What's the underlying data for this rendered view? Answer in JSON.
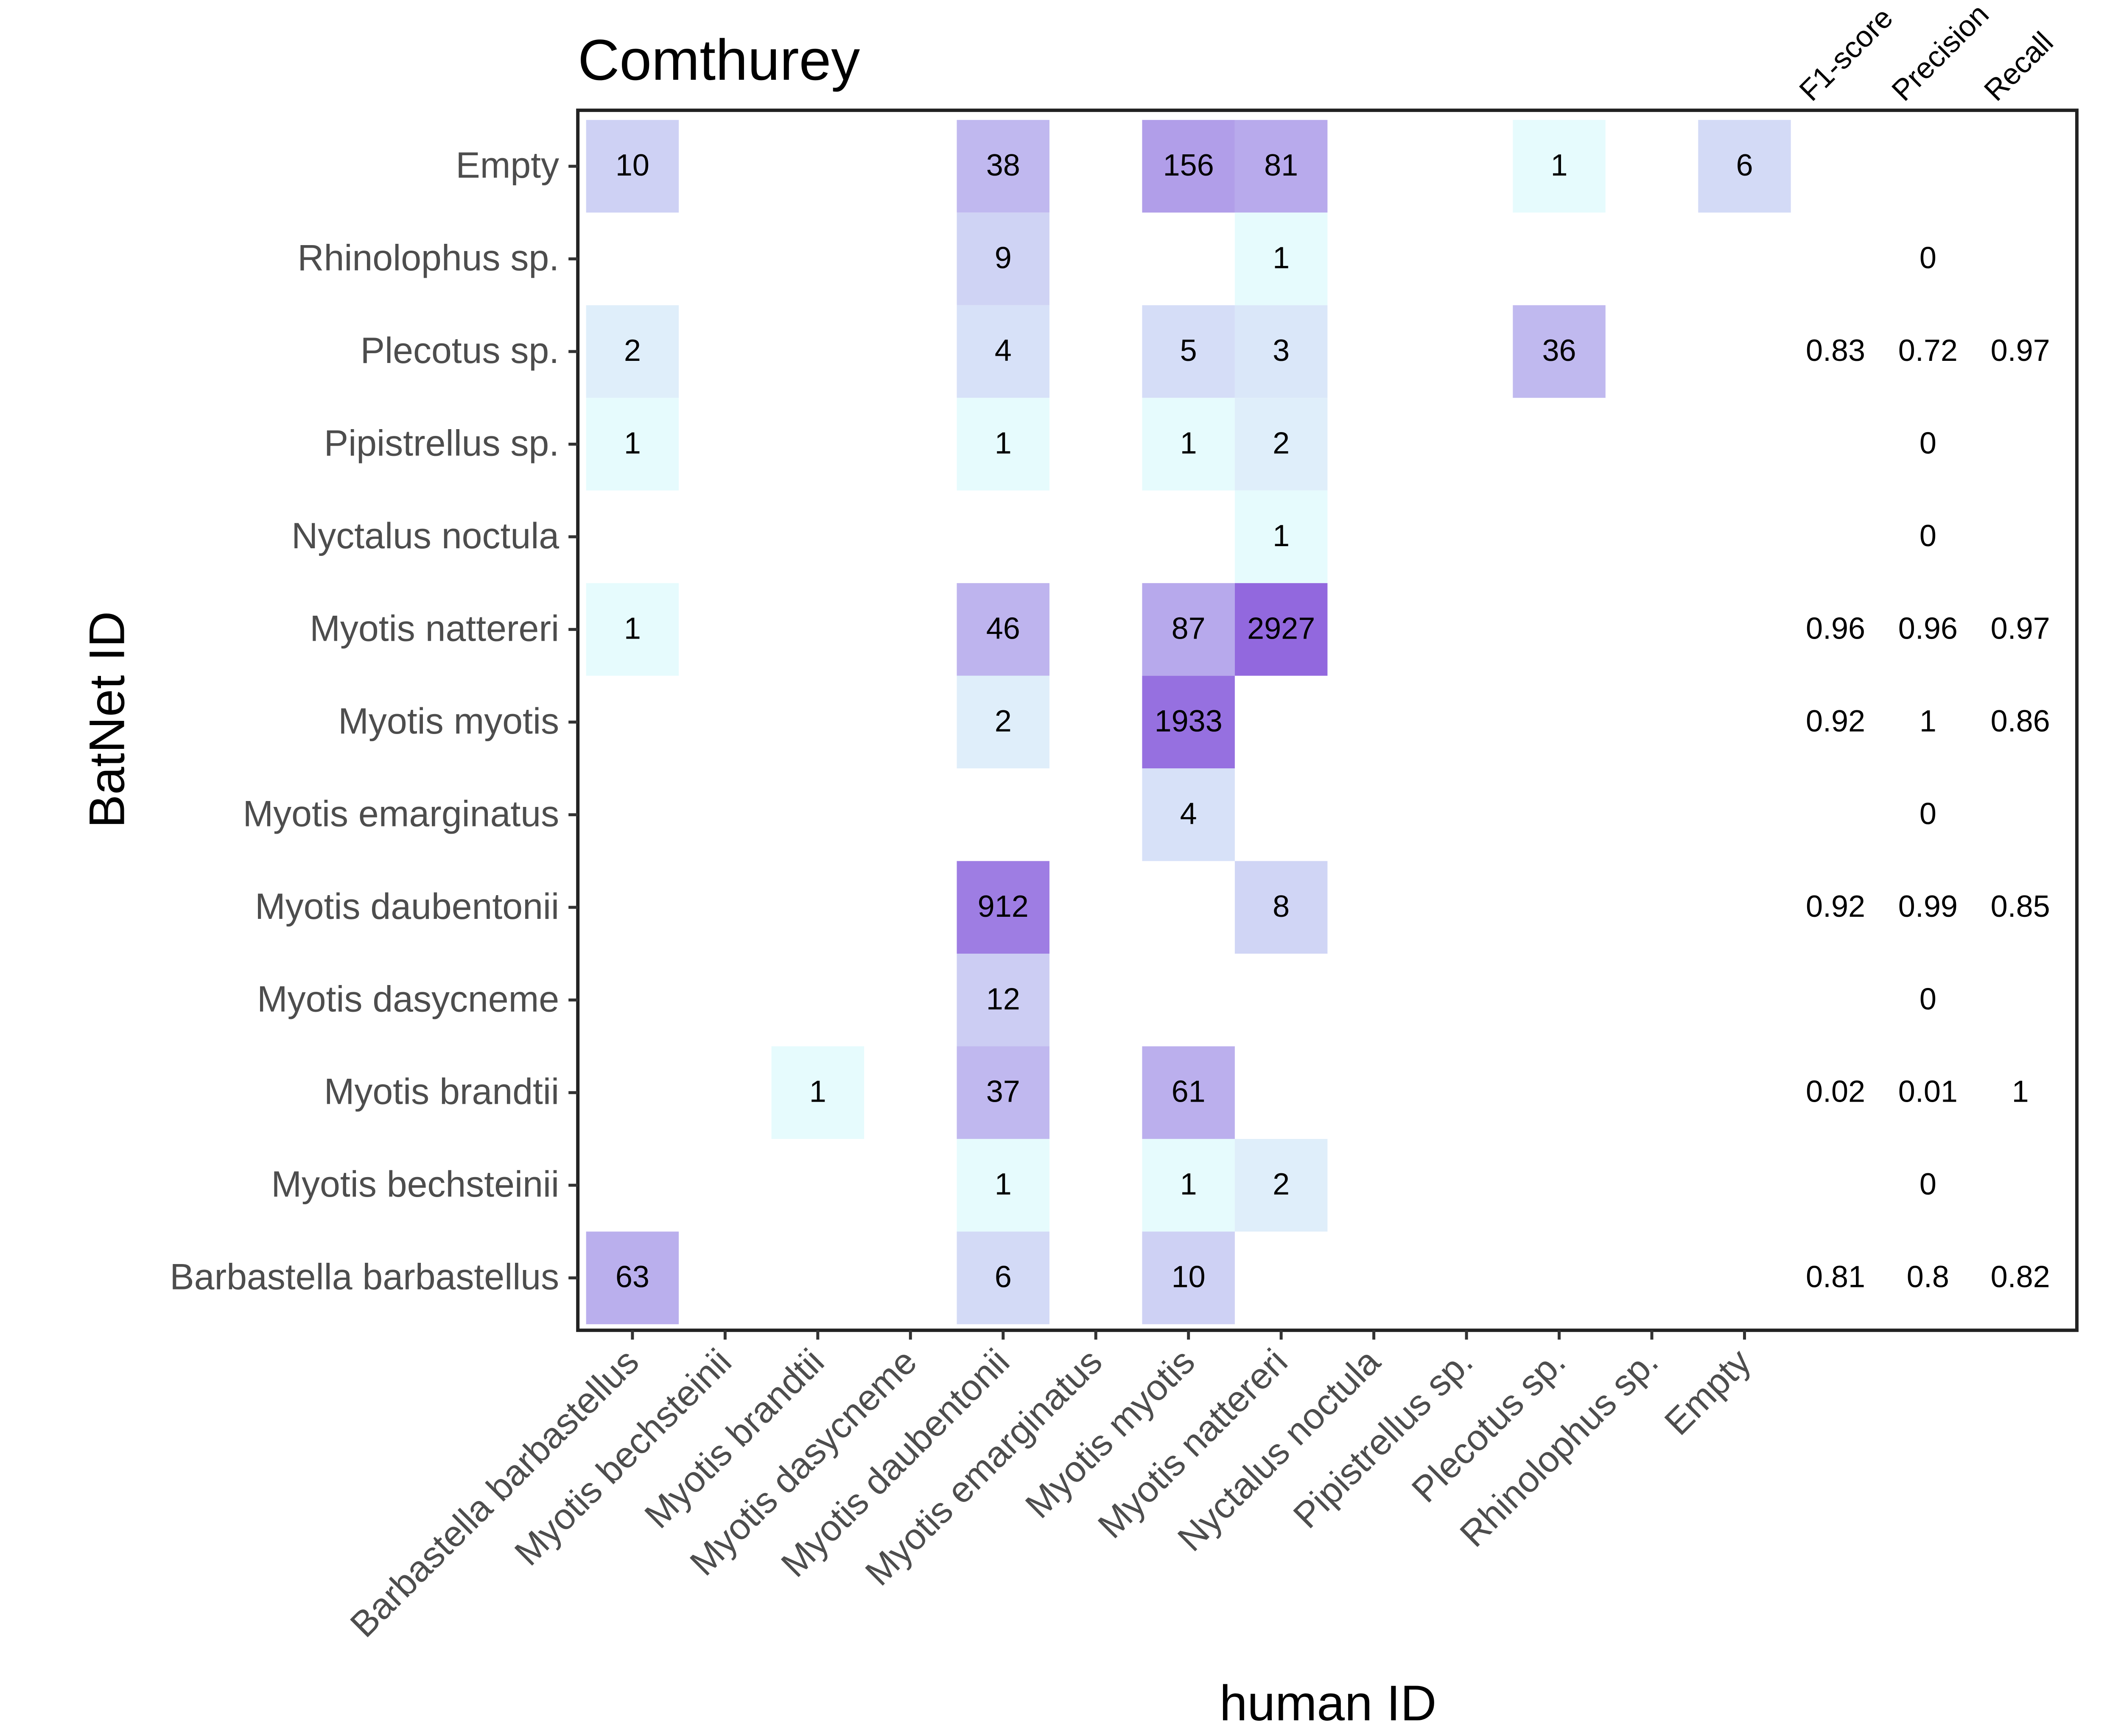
{
  "chart_data": {
    "type": "heatmap",
    "title": "Comthurey",
    "xlabel": "human ID",
    "ylabel": "BatNet ID",
    "x_categories": [
      "Barbastella barbastellus",
      "Myotis bechsteinii",
      "Myotis brandtii",
      "Myotis dasycneme",
      "Myotis daubentonii",
      "Myotis emarginatus",
      "Myotis myotis",
      "Myotis nattereri",
      "Nyctalus noctula",
      "Pipistrellus sp.",
      "Plecotus sp.",
      "Rhinolophus sp.",
      "Empty"
    ],
    "y_categories": [
      "Empty",
      "Rhinolophus sp.",
      "Plecotus sp.",
      "Pipistrellus sp.",
      "Nyctalus noctula",
      "Myotis nattereri",
      "Myotis myotis",
      "Myotis emarginatus",
      "Myotis daubentonii",
      "Myotis dasycneme",
      "Myotis brandtii",
      "Myotis bechsteinii",
      "Barbastella barbastellus"
    ],
    "cells": [
      {
        "y": "Empty",
        "x": "Barbastella barbastellus",
        "value": 10
      },
      {
        "y": "Empty",
        "x": "Myotis daubentonii",
        "value": 38
      },
      {
        "y": "Empty",
        "x": "Myotis myotis",
        "value": 156
      },
      {
        "y": "Empty",
        "x": "Myotis nattereri",
        "value": 81
      },
      {
        "y": "Empty",
        "x": "Plecotus sp.",
        "value": 1
      },
      {
        "y": "Empty",
        "x": "Empty",
        "value": 6
      },
      {
        "y": "Rhinolophus sp.",
        "x": "Myotis daubentonii",
        "value": 9
      },
      {
        "y": "Rhinolophus sp.",
        "x": "Myotis nattereri",
        "value": 1
      },
      {
        "y": "Plecotus sp.",
        "x": "Barbastella barbastellus",
        "value": 2
      },
      {
        "y": "Plecotus sp.",
        "x": "Myotis daubentonii",
        "value": 4
      },
      {
        "y": "Plecotus sp.",
        "x": "Myotis myotis",
        "value": 5
      },
      {
        "y": "Plecotus sp.",
        "x": "Myotis nattereri",
        "value": 3
      },
      {
        "y": "Plecotus sp.",
        "x": "Plecotus sp.",
        "value": 36
      },
      {
        "y": "Pipistrellus sp.",
        "x": "Barbastella barbastellus",
        "value": 1
      },
      {
        "y": "Pipistrellus sp.",
        "x": "Myotis daubentonii",
        "value": 1
      },
      {
        "y": "Pipistrellus sp.",
        "x": "Myotis myotis",
        "value": 1
      },
      {
        "y": "Pipistrellus sp.",
        "x": "Myotis nattereri",
        "value": 2
      },
      {
        "y": "Nyctalus noctula",
        "x": "Myotis nattereri",
        "value": 1
      },
      {
        "y": "Myotis nattereri",
        "x": "Barbastella barbastellus",
        "value": 1
      },
      {
        "y": "Myotis nattereri",
        "x": "Myotis daubentonii",
        "value": 46
      },
      {
        "y": "Myotis nattereri",
        "x": "Myotis myotis",
        "value": 87
      },
      {
        "y": "Myotis nattereri",
        "x": "Myotis nattereri",
        "value": 2927
      },
      {
        "y": "Myotis myotis",
        "x": "Myotis daubentonii",
        "value": 2
      },
      {
        "y": "Myotis myotis",
        "x": "Myotis myotis",
        "value": 1933
      },
      {
        "y": "Myotis emarginatus",
        "x": "Myotis myotis",
        "value": 4
      },
      {
        "y": "Myotis daubentonii",
        "x": "Myotis daubentonii",
        "value": 912
      },
      {
        "y": "Myotis daubentonii",
        "x": "Myotis nattereri",
        "value": 8
      },
      {
        "y": "Myotis dasycneme",
        "x": "Myotis daubentonii",
        "value": 12
      },
      {
        "y": "Myotis brandtii",
        "x": "Myotis brandtii",
        "value": 1
      },
      {
        "y": "Myotis brandtii",
        "x": "Myotis daubentonii",
        "value": 37
      },
      {
        "y": "Myotis brandtii",
        "x": "Myotis myotis",
        "value": 61
      },
      {
        "y": "Myotis bechsteinii",
        "x": "Myotis daubentonii",
        "value": 1
      },
      {
        "y": "Myotis bechsteinii",
        "x": "Myotis myotis",
        "value": 1
      },
      {
        "y": "Myotis bechsteinii",
        "x": "Myotis nattereri",
        "value": 2
      },
      {
        "y": "Barbastella barbastellus",
        "x": "Barbastella barbastellus",
        "value": 63
      },
      {
        "y": "Barbastella barbastellus",
        "x": "Myotis daubentonii",
        "value": 6
      },
      {
        "y": "Barbastella barbastellus",
        "x": "Myotis myotis",
        "value": 10
      }
    ],
    "metric_columns": [
      "F1-score",
      "Precision",
      "Recall"
    ],
    "metrics": [
      {
        "y": "Empty",
        "F1-score": "",
        "Precision": "",
        "Recall": ""
      },
      {
        "y": "Rhinolophus sp.",
        "F1-score": "",
        "Precision": "0",
        "Recall": ""
      },
      {
        "y": "Plecotus sp.",
        "F1-score": "0.83",
        "Precision": "0.72",
        "Recall": "0.97"
      },
      {
        "y": "Pipistrellus sp.",
        "F1-score": "",
        "Precision": "0",
        "Recall": ""
      },
      {
        "y": "Nyctalus noctula",
        "F1-score": "",
        "Precision": "0",
        "Recall": ""
      },
      {
        "y": "Myotis nattereri",
        "F1-score": "0.96",
        "Precision": "0.96",
        "Recall": "0.97"
      },
      {
        "y": "Myotis myotis",
        "F1-score": "0.92",
        "Precision": "1",
        "Recall": "0.86"
      },
      {
        "y": "Myotis emarginatus",
        "F1-score": "",
        "Precision": "0",
        "Recall": ""
      },
      {
        "y": "Myotis daubentonii",
        "F1-score": "0.92",
        "Precision": "0.99",
        "Recall": "0.85"
      },
      {
        "y": "Myotis dasycneme",
        "F1-score": "",
        "Precision": "0",
        "Recall": ""
      },
      {
        "y": "Myotis brandtii",
        "F1-score": "0.02",
        "Precision": "0.01",
        "Recall": "1"
      },
      {
        "y": "Myotis bechsteinii",
        "F1-score": "",
        "Precision": "0",
        "Recall": ""
      },
      {
        "y": "Barbastella barbastellus",
        "F1-score": "0.81",
        "Precision": "0.8",
        "Recall": "0.82"
      }
    ],
    "color_scale": {
      "type": "log",
      "low": "#e6fbfd",
      "high": "#9268de"
    },
    "grid": false,
    "legend": "none"
  }
}
